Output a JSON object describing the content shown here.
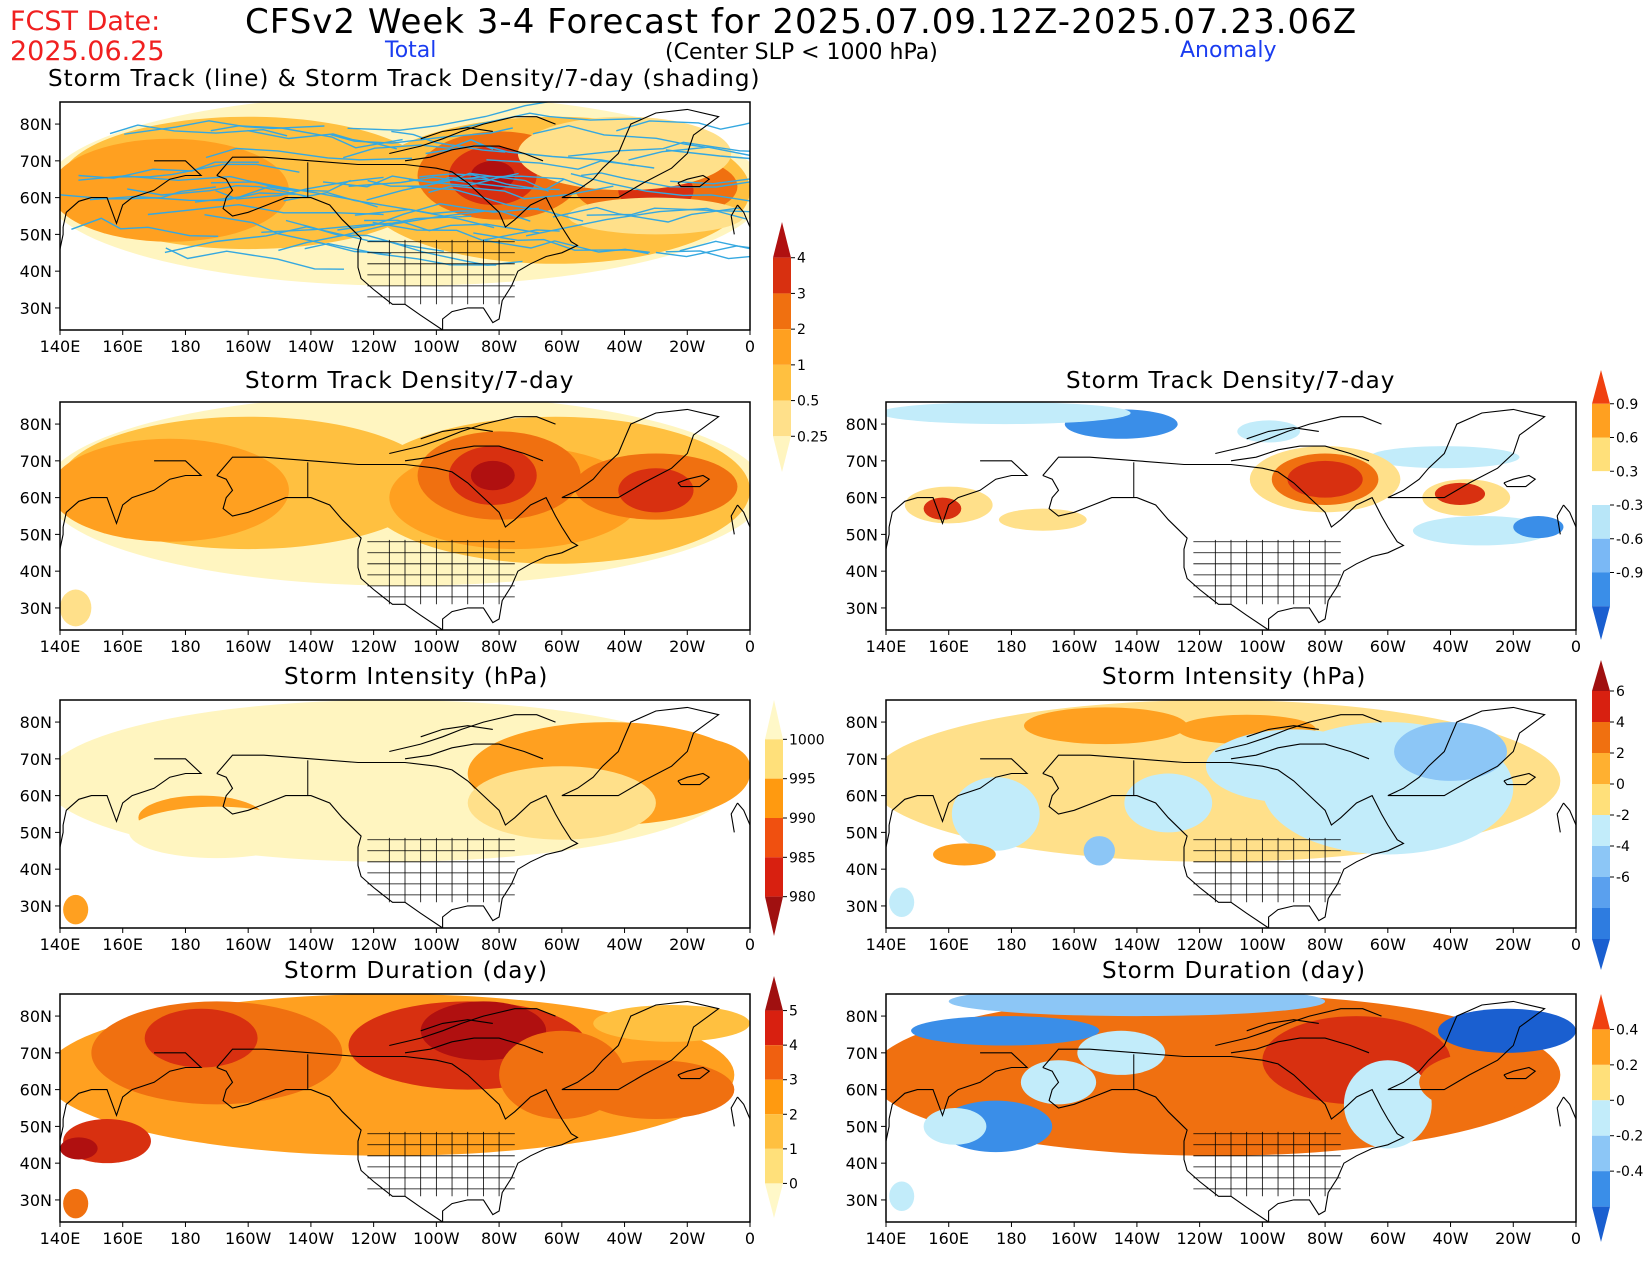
{
  "header": {
    "fcst_label": "FCST Date:",
    "fcst_date": "2025.06.25",
    "title": "CFSv2 Week 3-4 Forecast for 2025.07.09.12Z-2025.07.23.06Z",
    "total_label": "Total",
    "subtitle": "(Center SLP < 1000 hPa)",
    "anomaly_label": "Anomaly"
  },
  "map_axes": {
    "lon_labels": [
      "140E",
      "160E",
      "180",
      "160W",
      "140W",
      "120W",
      "100W",
      "80W",
      "60W",
      "40W",
      "20W",
      "0"
    ],
    "lat_labels": [
      "80N",
      "70N",
      "60N",
      "50N",
      "40N",
      "30N"
    ]
  },
  "panels": {
    "track_total": {
      "title": "Storm Track (line) & Storm Track Density/7-day (shading)"
    },
    "density_total": {
      "title": "Storm Track Density/7-day"
    },
    "density_anom": {
      "title": "Storm Track Density/7-day"
    },
    "intensity_total": {
      "title": "Storm Intensity (hPa)"
    },
    "intensity_anom": {
      "title": "Storm Intensity (hPa)"
    },
    "duration_total": {
      "title": "Storm Duration (day)"
    },
    "duration_anom": {
      "title": "Storm Duration (day)"
    }
  },
  "colorbars": {
    "density_total": {
      "labels": [
        "0.25",
        "0.5",
        "1",
        "2",
        "3",
        "4"
      ],
      "colors": [
        "#fff5c0",
        "#ffe08a",
        "#ffc040",
        "#ffa020",
        "#f07010",
        "#d83010",
        "#b01010"
      ]
    },
    "density_anom": {
      "labels": [
        "-0.9",
        "-0.6",
        "-0.3",
        "0.3",
        "0.6",
        "0.9"
      ],
      "colors": [
        "#1a5fd0",
        "#3a8ee8",
        "#7ab8f5",
        "#b8e6f8",
        "#ffffff",
        "#ffe07a",
        "#ffa020",
        "#f04010"
      ]
    },
    "intensity_total": {
      "labels": [
        "980",
        "985",
        "990",
        "995",
        "1000"
      ],
      "colors": [
        "#a01010",
        "#d82010",
        "#f05010",
        "#ff9a10",
        "#ffe07a",
        "#fff8c8"
      ]
    },
    "intensity_anom": {
      "labels": [
        "-6",
        "-4",
        "-2",
        "0",
        "2",
        "4",
        "6"
      ],
      "colors": [
        "#1a5fd0",
        "#2e7ce0",
        "#5aa0ee",
        "#8cc6f6",
        "#c2ecfa",
        "#ffe07a",
        "#ffb030",
        "#f07010",
        "#d82010",
        "#a01010"
      ]
    },
    "duration_total": {
      "labels": [
        "0",
        "1",
        "2",
        "3",
        "4",
        "5"
      ],
      "colors": [
        "#fff8c8",
        "#ffe07a",
        "#ffc040",
        "#ff9a10",
        "#f06010",
        "#d82010",
        "#a01010"
      ]
    },
    "duration_anom": {
      "labels": [
        "-0.4",
        "-0.2",
        "0",
        "0.2",
        "0.4"
      ],
      "colors": [
        "#1a5fd0",
        "#3a8ee8",
        "#8cc6f6",
        "#c2ecfa",
        "#ffe07a",
        "#ffa020",
        "#f04010"
      ]
    }
  }
}
